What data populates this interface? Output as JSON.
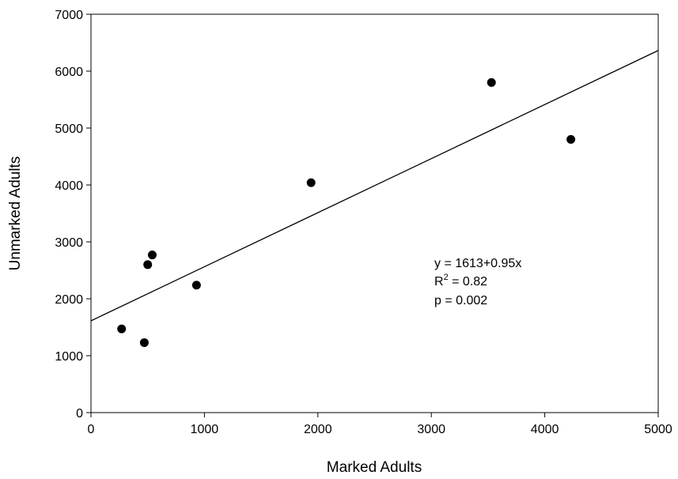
{
  "chart_data": {
    "type": "scatter",
    "xlabel": "Marked Adults",
    "ylabel": "Unmarked Adults",
    "xlim": [
      0,
      5000
    ],
    "ylim": [
      0,
      7000
    ],
    "xticks": [
      0,
      1000,
      2000,
      3000,
      4000,
      5000
    ],
    "yticks": [
      0,
      1000,
      2000,
      3000,
      4000,
      5000,
      6000,
      7000
    ],
    "grid": false,
    "points": [
      {
        "x": 270,
        "y": 1470
      },
      {
        "x": 470,
        "y": 1230
      },
      {
        "x": 500,
        "y": 2600
      },
      {
        "x": 540,
        "y": 2770
      },
      {
        "x": 930,
        "y": 2240
      },
      {
        "x": 1940,
        "y": 4040
      },
      {
        "x": 3530,
        "y": 5800
      },
      {
        "x": 4230,
        "y": 4800
      }
    ],
    "regression": {
      "intercept": 1613,
      "slope": 0.95
    },
    "annotation": {
      "equation": "y = 1613+0.95x",
      "r2_prefix": "R",
      "r2_sup": "2",
      "r2_value": " = 0.82",
      "p_value": "p = 0.002"
    }
  }
}
